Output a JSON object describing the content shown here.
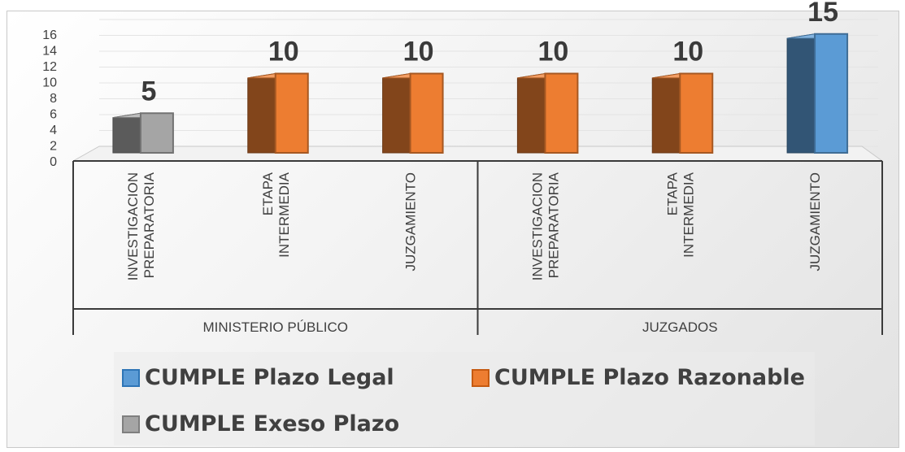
{
  "chart_data": {
    "type": "bar",
    "title": "",
    "xlabel": "",
    "ylabel": "",
    "ylim": [
      0,
      16
    ],
    "y_ticks": [
      0,
      2,
      4,
      6,
      8,
      10,
      12,
      14,
      16
    ],
    "groups": [
      {
        "label": "MINISTERIO PÚBLICO",
        "categories": [
          {
            "lines": [
              "INVESTIGACION",
              "PREPARATORIA"
            ]
          },
          {
            "lines": [
              "ETAPA",
              "INTERMEDIA"
            ]
          },
          {
            "lines": [
              "JUZGAMIENTO"
            ]
          }
        ]
      },
      {
        "label": "JUZGADOS",
        "categories": [
          {
            "lines": [
              "INVESTIGACION",
              "PREPARATORIA"
            ]
          },
          {
            "lines": [
              "ETAPA",
              "INTERMEDIA"
            ]
          },
          {
            "lines": [
              "JUZGAMIENTO"
            ]
          }
        ]
      }
    ],
    "series": [
      {
        "name": "CUMPLE Plazo Legal",
        "color": "#5b9bd5",
        "values": [
          null,
          null,
          null,
          null,
          null,
          15
        ]
      },
      {
        "name": "CUMPLE Plazo Razonable",
        "color": "#ed7d31",
        "values": [
          null,
          10,
          10,
          10,
          10,
          null
        ]
      },
      {
        "name": "CUMPLE Exeso Plazo",
        "color": "#a5a5a5",
        "values": [
          5,
          null,
          null,
          null,
          null,
          null
        ]
      }
    ],
    "data_labels": [
      {
        "category_index": 0,
        "text": "5"
      },
      {
        "category_index": 1,
        "text": "10"
      },
      {
        "category_index": 2,
        "text": "10"
      },
      {
        "category_index": 3,
        "text": "10"
      },
      {
        "category_index": 4,
        "text": "10"
      },
      {
        "category_index": 5,
        "text": "15"
      }
    ],
    "legend_position": "bottom",
    "style": "3d-column"
  }
}
